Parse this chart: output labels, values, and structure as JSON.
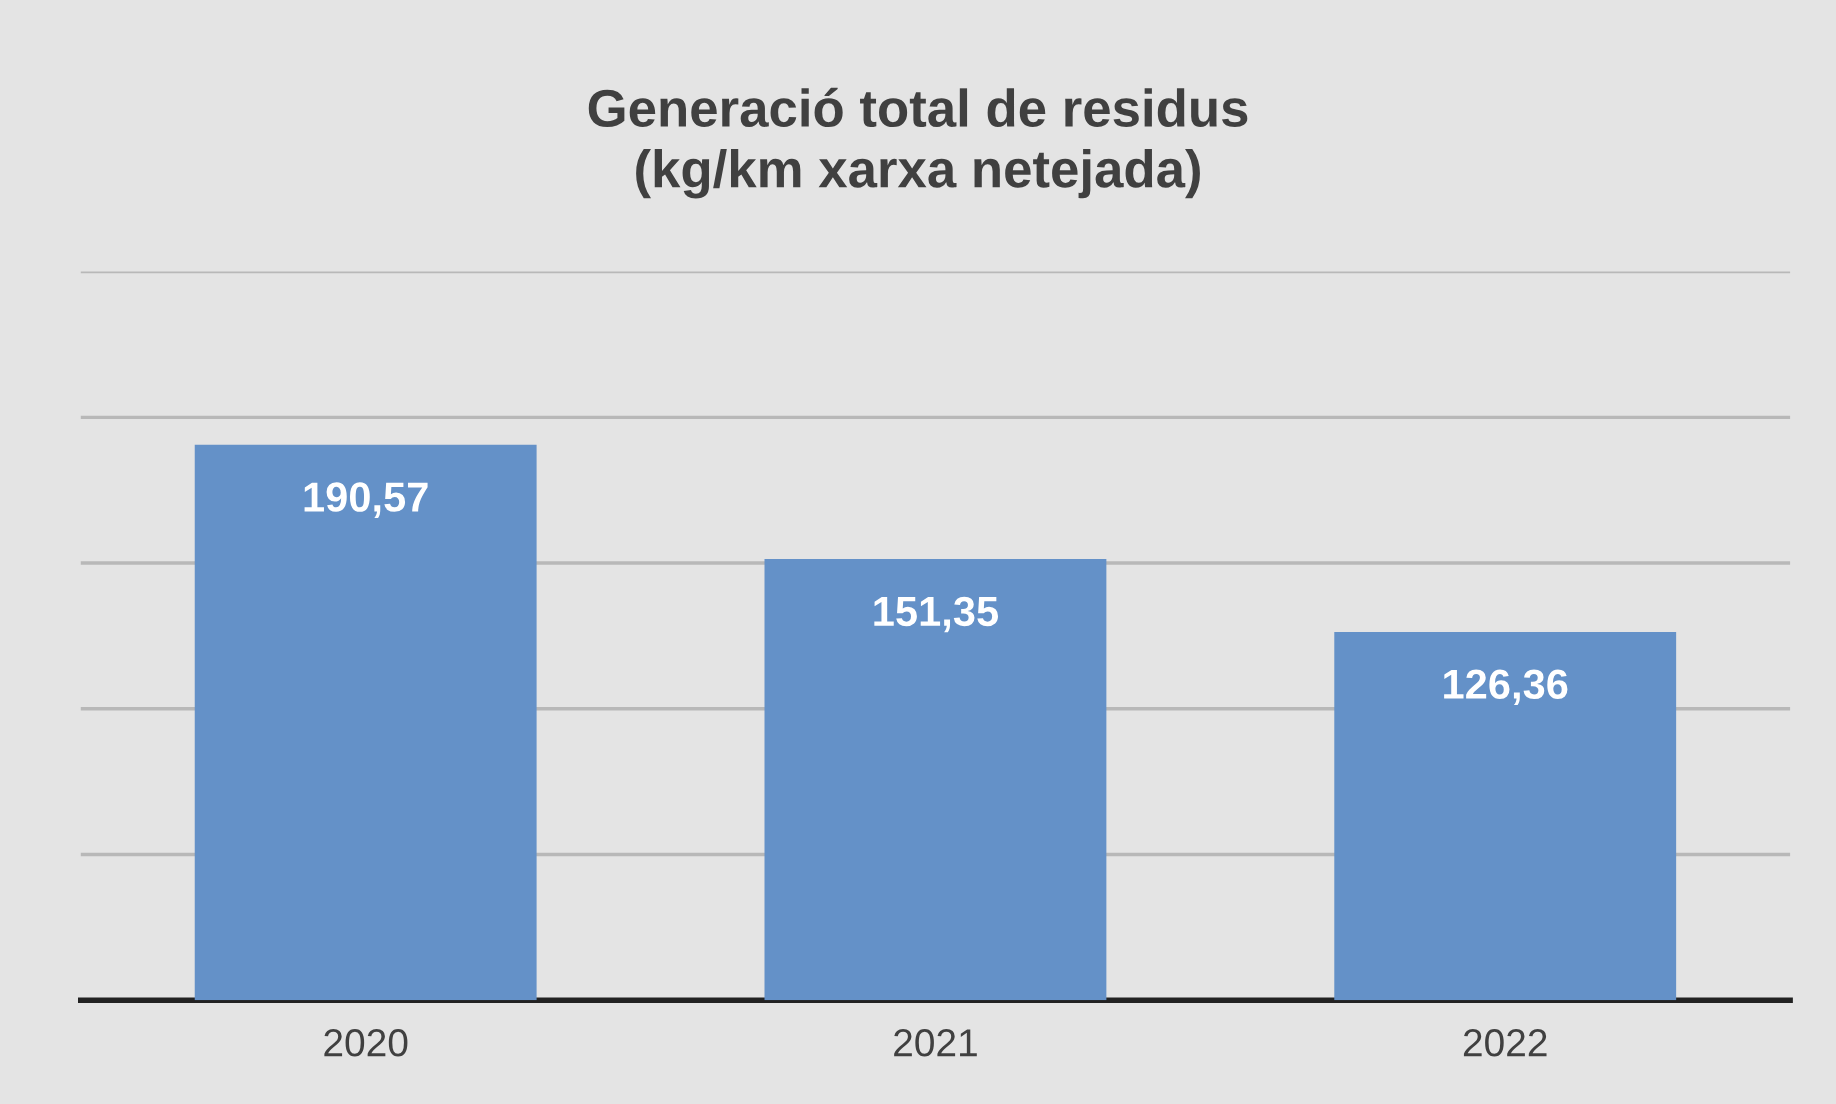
{
  "chart_data": {
    "type": "bar",
    "title": "Generació total de residus\n(kg/km xarxa netejada)",
    "categories": [
      "2020",
      "2021",
      "2022"
    ],
    "values": [
      190.57,
      151.35,
      126.36
    ],
    "value_labels": [
      "190,57",
      "151,35",
      "126,36"
    ],
    "color": "#6491c8",
    "ylim": [
      0,
      250
    ],
    "yticks": [
      {
        "value": 0,
        "label": null
      },
      {
        "value": 50,
        "label": null
      },
      {
        "value": 100,
        "label": null
      },
      {
        "value": 150,
        "label": null
      },
      {
        "value": 200,
        "label": null
      },
      {
        "value": 250,
        "label": null
      }
    ],
    "grid": "y",
    "tick_labels": "x"
  }
}
